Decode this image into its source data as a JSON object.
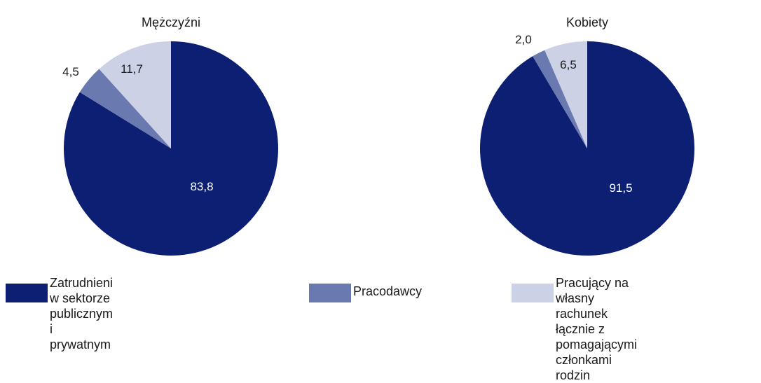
{
  "colors": {
    "series": [
      "#0c1f73",
      "#6a7ab0",
      "#cdd1e5"
    ],
    "label_on_dark": "#ffffff",
    "label_on_light": "#1a1a1a"
  },
  "chart_data": [
    {
      "type": "pie",
      "title": "Mężczyźni",
      "categories": [
        "Zatrudnieni w sektorze publicznym i prywatnym",
        "Pracodawcy",
        "Pracujący na własny rachunek łącznie z pomagającymi członkami rodzin"
      ],
      "values": [
        83.8,
        4.5,
        11.7
      ],
      "labels": [
        "83,8",
        "4,5",
        "11,7"
      ]
    },
    {
      "type": "pie",
      "title": "Kobiety",
      "categories": [
        "Zatrudnieni w sektorze publicznym i prywatnym",
        "Pracodawcy",
        "Pracujący na własny rachunek łącznie z pomagającymi członkami rodzin"
      ],
      "values": [
        91.5,
        2.0,
        6.5
      ],
      "labels": [
        "91,5",
        "2,0",
        "6,5"
      ]
    }
  ],
  "legend": [
    {
      "lines": [
        "Zatrudnieni w sektorze",
        "publicznym i prywatnym"
      ]
    },
    {
      "lines": [
        "Pracodawcy"
      ]
    },
    {
      "lines": [
        "Pracujący na własny rachunek",
        "łącznie z pomagającymi",
        "członkami rodzin"
      ]
    }
  ]
}
